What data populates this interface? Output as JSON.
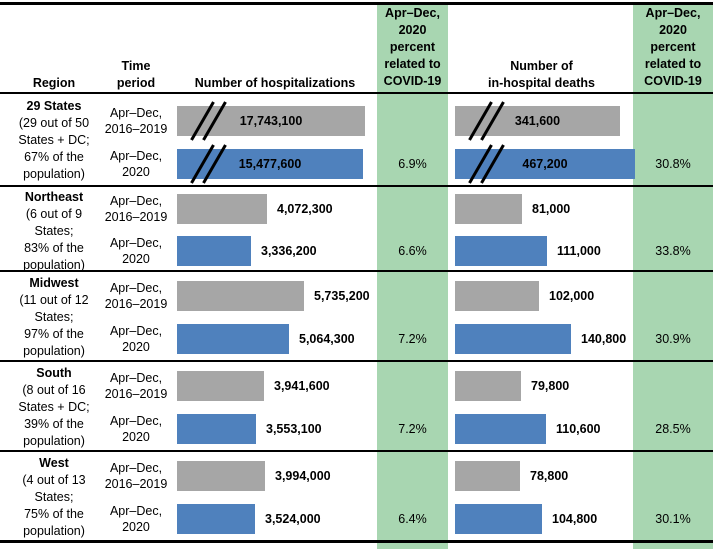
{
  "colors": {
    "green": "#a8d6b1",
    "blue": "#4f81bd",
    "gray": "#a6a6a6",
    "line": "#000000"
  },
  "header": {
    "region": "Region",
    "time_period": "Time\nperiod",
    "hospitalizations": "Number of hospitalizations",
    "covid_pct": "Apr–Dec,\n2020\npercent\nrelated to\nCOVID-19",
    "deaths": "Number of\nin-hospital deaths"
  },
  "sections": [
    {
      "name": "29 States",
      "description": "(29 out of 50\nStates + DC;\n67% of the\npopulation)",
      "rows": [
        {
          "period": "Apr–Dec,\n2016–2019",
          "hosp_label": "17,743,100",
          "deaths_label": "341,600"
        },
        {
          "period": "Apr–Dec,\n2020",
          "hosp_label": "15,477,600",
          "deaths_label": "467,200",
          "hosp_pct": "6.9%",
          "deaths_pct": "30.8%"
        }
      ]
    },
    {
      "name": "Northeast",
      "description": "(6 out of 9\nStates;\n83% of the\npopulation)",
      "rows": [
        {
          "period": "Apr–Dec,\n2016–2019",
          "hosp_label": "4,072,300",
          "deaths_label": "81,000"
        },
        {
          "period": "Apr–Dec,\n2020",
          "hosp_label": "3,336,200",
          "deaths_label": "111,000",
          "hosp_pct": "6.6%",
          "deaths_pct": "33.8%"
        }
      ]
    },
    {
      "name": "Midwest",
      "description": "(11 out of 12\nStates;\n97% of the\npopulation)",
      "rows": [
        {
          "period": "Apr–Dec,\n2016–2019",
          "hosp_label": "5,735,200",
          "deaths_label": "102,000"
        },
        {
          "period": "Apr–Dec,\n2020",
          "hosp_label": "5,064,300",
          "deaths_label": "140,800",
          "hosp_pct": "7.2%",
          "deaths_pct": "30.9%"
        }
      ]
    },
    {
      "name": "South",
      "description": "(8 out of 16\nStates + DC;\n39% of the\npopulation)",
      "rows": [
        {
          "period": "Apr–Dec,\n2016–2019",
          "hosp_label": "3,941,600",
          "deaths_label": "79,800"
        },
        {
          "period": "Apr–Dec,\n2020",
          "hosp_label": "3,553,100",
          "deaths_label": "110,600",
          "hosp_pct": "7.2%",
          "deaths_pct": "28.5%"
        }
      ]
    },
    {
      "name": "West",
      "description": "(4 out of 13\nStates;\n75% of the\npopulation)",
      "rows": [
        {
          "period": "Apr–Dec,\n2016–2019",
          "hosp_label": "3,994,000",
          "deaths_label": "78,800"
        },
        {
          "period": "Apr–Dec,\n2020",
          "hosp_label": "3,524,000",
          "deaths_label": "104,800",
          "hosp_pct": "6.4%",
          "deaths_pct": "30.1%"
        }
      ]
    }
  ],
  "chart_data": [
    {
      "type": "bar",
      "orientation": "horizontal",
      "title": "Number of hospitalizations",
      "categories": [
        "29 States (29 out of 50 States + DC; 67% of the population)",
        "Northeast (6 out of 9 States; 83% of the population)",
        "Midwest (11 out of 12 States; 97% of the population)",
        "South (8 out of 16 States + DC; 39% of the population)",
        "West (4 out of 13 States; 75% of the population)"
      ],
      "series": [
        {
          "name": "Apr–Dec, 2016–2019",
          "color": "#a6a6a6",
          "values": [
            17743100,
            4072300,
            5735200,
            3941600,
            3994000
          ]
        },
        {
          "name": "Apr–Dec, 2020",
          "color": "#4f81bd",
          "values": [
            15477600,
            3336200,
            5064300,
            3553100,
            3524000
          ]
        }
      ],
      "annotations": {
        "label": "Apr–Dec, 2020 percent related to COVID-19",
        "values": [
          "6.9%",
          "6.6%",
          "7.2%",
          "7.2%",
          "6.4%"
        ]
      },
      "layout_note": "29 States bars are truncated and drawn with axis-break marks"
    },
    {
      "type": "bar",
      "orientation": "horizontal",
      "title": "Number of in-hospital deaths",
      "categories": [
        "29 States (29 out of 50 States + DC; 67% of the population)",
        "Northeast (6 out of 9 States; 83% of the population)",
        "Midwest (11 out of 12 States; 97% of the population)",
        "South (8 out of 16 States + DC; 39% of the population)",
        "West (4 out of 13 States; 75% of the population)"
      ],
      "series": [
        {
          "name": "Apr–Dec, 2016–2019",
          "color": "#a6a6a6",
          "values": [
            341600,
            81000,
            102000,
            79800,
            78800
          ]
        },
        {
          "name": "Apr–Dec, 2020",
          "color": "#4f81bd",
          "values": [
            467200,
            111000,
            140800,
            110600,
            104800
          ]
        }
      ],
      "annotations": {
        "label": "Apr–Dec, 2020 percent related to COVID-19",
        "values": [
          "30.8%",
          "33.8%",
          "30.9%",
          "28.5%",
          "30.1%"
        ]
      },
      "layout_note": "29 States bars are truncated and drawn with axis-break marks"
    }
  ]
}
